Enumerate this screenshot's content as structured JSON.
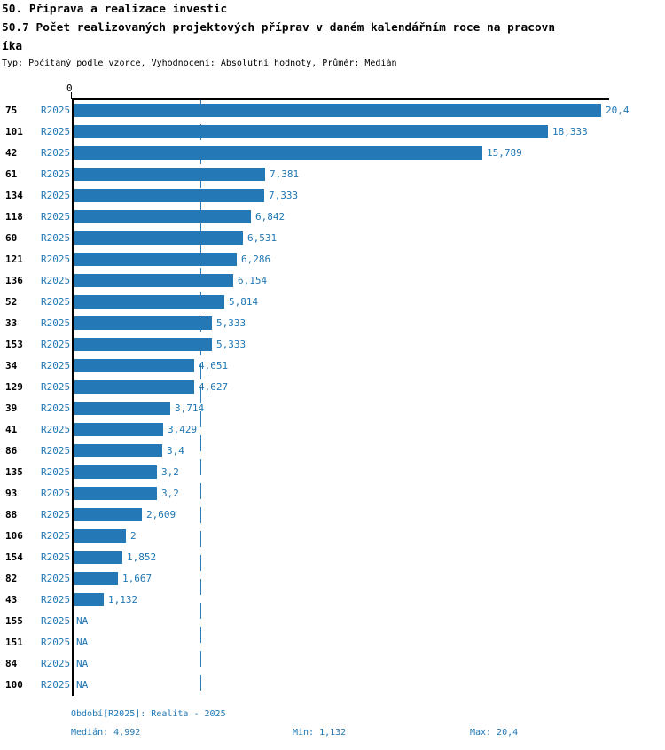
{
  "header": {
    "title_line1": "50. Příprava a realizace investic",
    "title_line2": "50.7 Počet realizovaných projektových příprav v daném kalendářním roce na pracovn",
    "title_line3": "íka",
    "subtitle": "Typ: Počítaný podle vzorce, Vyhodnocení: Absolutní hodnoty, Průměr: Medián"
  },
  "chart_data": {
    "type": "bar",
    "orientation": "horizontal",
    "title": "50.7 Počet realizovaných projektových příprav v daném kalendářním roce na pracovníka",
    "axis_zero_label": "0",
    "xlim": [
      0,
      20.4
    ],
    "grid": false,
    "period": "R2025",
    "categories": [
      "75",
      "101",
      "42",
      "61",
      "134",
      "118",
      "60",
      "121",
      "136",
      "52",
      "33",
      "153",
      "34",
      "129",
      "39",
      "41",
      "86",
      "135",
      "93",
      "88",
      "106",
      "154",
      "82",
      "43",
      "155",
      "151",
      "84",
      "100"
    ],
    "values": [
      20.4,
      18.333,
      15.789,
      7.381,
      7.333,
      6.842,
      6.531,
      6.286,
      6.154,
      5.814,
      5.333,
      5.333,
      4.651,
      4.627,
      3.714,
      3.429,
      3.4,
      3.2,
      3.2,
      2.609,
      2,
      1.852,
      1.667,
      1.132,
      null,
      null,
      null,
      null
    ],
    "value_labels": [
      "20,4",
      "18,333",
      "15,789",
      "7,381",
      "7,333",
      "6,842",
      "6,531",
      "6,286",
      "6,154",
      "5,814",
      "5,333",
      "5,333",
      "4,651",
      "4,627",
      "3,714",
      "3,429",
      "3,4",
      "3,2",
      "3,2",
      "2,609",
      "2",
      "1,852",
      "1,667",
      "1,132",
      "NA",
      "NA",
      "NA",
      "NA"
    ],
    "median_value": 4.992,
    "bar_color": "#2478b5",
    "accent_text_color": "#1f77b4",
    "median_line_color": "#2e7db8",
    "axis_color": "#000000"
  },
  "footer": {
    "period_label": "Období[R2025]: Realita - 2025",
    "median_label": "Medián: 4,992",
    "min_label": "Min: 1,132",
    "max_label": "Max: 20,4"
  }
}
